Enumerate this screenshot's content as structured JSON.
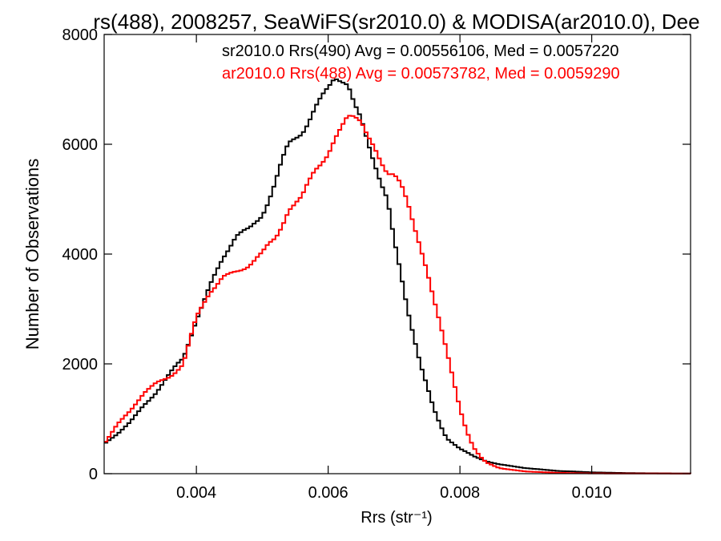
{
  "chart_data": {
    "type": "line",
    "title": "rs(488), 2008257, SeaWiFS(sr2010.0) & MODISA(ar2010.0), Dee",
    "xlabel": "Rrs (str⁻¹)",
    "ylabel": "Number of Observations",
    "xlim": [
      0.0026,
      0.0115
    ],
    "ylim": [
      0,
      8000
    ],
    "x_ticks": [
      0.004,
      0.006,
      0.008,
      0.01
    ],
    "x_tick_labels": [
      "0.004",
      "0.006",
      "0.008",
      "0.010"
    ],
    "y_ticks": [
      0,
      2000,
      4000,
      6000,
      8000
    ],
    "y_tick_labels": [
      "0",
      "2000",
      "4000",
      "6000",
      "8000"
    ],
    "grid": false,
    "legend_placement": "top-right",
    "x_step": 5e-05,
    "annotations": [
      {
        "text": "sr2010.0 Rrs(490) Avg = 0.00556106, Med = 0.0057220",
        "color": "#000000"
      },
      {
        "text": "ar2010.0 Rrs(488) Avg = 0.00573782, Med = 0.0059290",
        "color": "#ff0000"
      }
    ],
    "series": [
      {
        "color": "#000000",
        "points": [
          [
            0.0026,
            530
          ],
          [
            0.0028,
            720
          ],
          [
            0.003,
            950
          ],
          [
            0.0032,
            1250
          ],
          [
            0.0034,
            1500
          ],
          [
            0.0036,
            1800
          ],
          [
            0.0038,
            2100
          ],
          [
            0.004,
            2850
          ],
          [
            0.0042,
            3400
          ],
          [
            0.0044,
            3900
          ],
          [
            0.0046,
            4300
          ],
          [
            0.0048,
            4450
          ],
          [
            0.005,
            4800
          ],
          [
            0.0052,
            5300
          ],
          [
            0.0054,
            5900
          ],
          [
            0.0056,
            6250
          ],
          [
            0.0058,
            6700
          ],
          [
            0.006,
            7050
          ],
          [
            0.0061,
            7250
          ],
          [
            0.0062,
            7150
          ],
          [
            0.0063,
            7000
          ],
          [
            0.0064,
            6600
          ],
          [
            0.0065,
            6400
          ],
          [
            0.0066,
            6100
          ],
          [
            0.0067,
            5800
          ],
          [
            0.0068,
            5400
          ],
          [
            0.0069,
            5000
          ],
          [
            0.007,
            4200
          ],
          [
            0.0071,
            3600
          ],
          [
            0.0072,
            3000
          ],
          [
            0.0073,
            2500
          ],
          [
            0.0074,
            2000
          ],
          [
            0.0075,
            1600
          ],
          [
            0.0076,
            1200
          ],
          [
            0.0077,
            900
          ],
          [
            0.0078,
            650
          ],
          [
            0.008,
            450
          ],
          [
            0.0082,
            320
          ],
          [
            0.0084,
            230
          ],
          [
            0.0086,
            170
          ],
          [
            0.009,
            100
          ],
          [
            0.0095,
            50
          ],
          [
            0.01,
            25
          ],
          [
            0.0105,
            12
          ],
          [
            0.011,
            6
          ],
          [
            0.0115,
            3
          ]
        ]
      },
      {
        "color": "#ff0000",
        "points": [
          [
            0.0026,
            550
          ],
          [
            0.0028,
            900
          ],
          [
            0.003,
            1150
          ],
          [
            0.0032,
            1450
          ],
          [
            0.0034,
            1650
          ],
          [
            0.0036,
            1800
          ],
          [
            0.0038,
            2000
          ],
          [
            0.004,
            2800
          ],
          [
            0.0042,
            3300
          ],
          [
            0.0044,
            3600
          ],
          [
            0.0046,
            3700
          ],
          [
            0.0048,
            3800
          ],
          [
            0.005,
            3950
          ],
          [
            0.0052,
            4300
          ],
          [
            0.0054,
            4900
          ],
          [
            0.0056,
            5000
          ],
          [
            0.0058,
            5500
          ],
          [
            0.006,
            5800
          ],
          [
            0.0062,
            6300
          ],
          [
            0.0063,
            6600
          ],
          [
            0.0064,
            6650
          ],
          [
            0.0065,
            6500
          ],
          [
            0.0066,
            6100
          ],
          [
            0.0067,
            5800
          ],
          [
            0.0068,
            5550
          ],
          [
            0.0069,
            5450
          ],
          [
            0.007,
            5550
          ],
          [
            0.0071,
            5400
          ],
          [
            0.0072,
            5000
          ],
          [
            0.0073,
            4500
          ],
          [
            0.0074,
            4100
          ],
          [
            0.0075,
            3700
          ],
          [
            0.0076,
            3200
          ],
          [
            0.0077,
            2700
          ],
          [
            0.0078,
            2200
          ],
          [
            0.0079,
            1700
          ],
          [
            0.008,
            1200
          ],
          [
            0.0081,
            800
          ],
          [
            0.0082,
            500
          ],
          [
            0.0083,
            320
          ],
          [
            0.0084,
            200
          ],
          [
            0.0086,
            100
          ],
          [
            0.009,
            40
          ],
          [
            0.0095,
            15
          ],
          [
            0.01,
            5
          ],
          [
            0.0115,
            2
          ]
        ]
      }
    ]
  }
}
